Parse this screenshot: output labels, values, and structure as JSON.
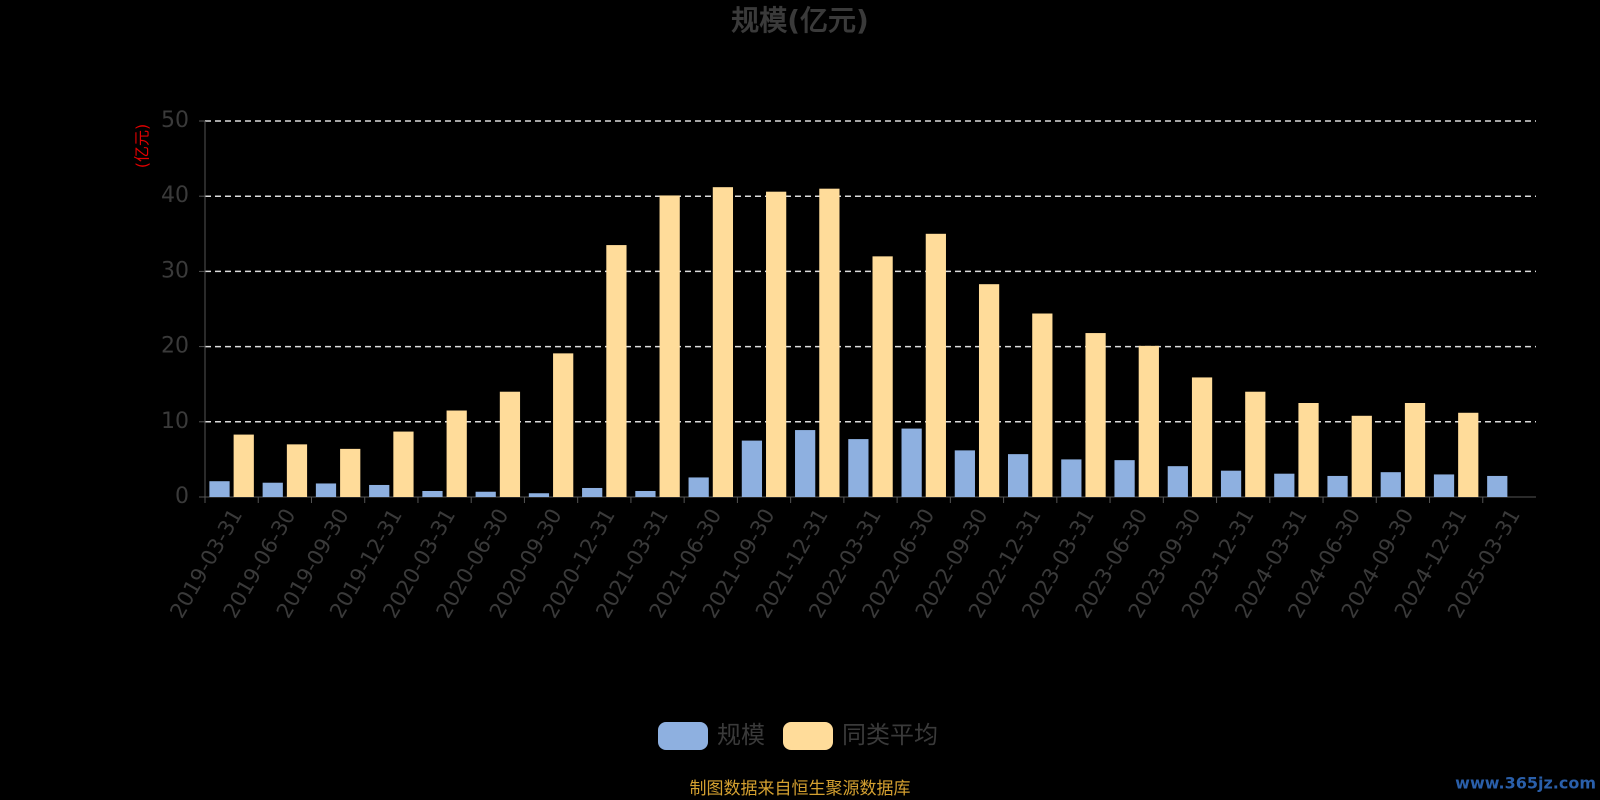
{
  "chart_data": {
    "type": "bar",
    "title": "规模(亿元)",
    "y_axis_label": "(亿元)",
    "categories": [
      "2019-03-31",
      "2019-06-30",
      "2019-09-30",
      "2019-12-31",
      "2020-03-31",
      "2020-06-30",
      "2020-09-30",
      "2020-12-31",
      "2021-03-31",
      "2021-06-30",
      "2021-09-30",
      "2021-12-31",
      "2022-03-31",
      "2022-06-30",
      "2022-09-30",
      "2022-12-31",
      "2023-03-31",
      "2023-06-30",
      "2023-09-30",
      "2023-12-31",
      "2024-03-31",
      "2024-06-30",
      "2024-09-30",
      "2024-12-31",
      "2025-03-31"
    ],
    "series": [
      {
        "name": "规模",
        "color": "#8eb0e0",
        "values": [
          2.1,
          1.9,
          1.8,
          1.6,
          0.8,
          0.7,
          0.5,
          1.2,
          0.8,
          2.6,
          7.5,
          8.9,
          7.7,
          9.1,
          6.2,
          5.7,
          5.0,
          4.9,
          4.1,
          3.5,
          3.1,
          2.8,
          3.3,
          3.0,
          2.8
        ]
      },
      {
        "name": "同类平均",
        "color": "#ffdc9a",
        "values": [
          8.3,
          7.0,
          6.4,
          8.7,
          11.5,
          14.0,
          19.1,
          33.5,
          40.1,
          41.2,
          40.6,
          41.0,
          32.0,
          35.0,
          28.3,
          24.4,
          21.8,
          20.1,
          15.9,
          14.0,
          12.5,
          10.8,
          12.5,
          11.2,
          null
        ]
      }
    ],
    "ylim": [
      0,
      50
    ],
    "yticks": [
      0,
      10,
      20,
      30,
      40,
      50
    ],
    "grid": true,
    "legend": "bottom",
    "source": "制图数据来自恒生聚源数据库",
    "watermark": "www.365jz.com"
  }
}
